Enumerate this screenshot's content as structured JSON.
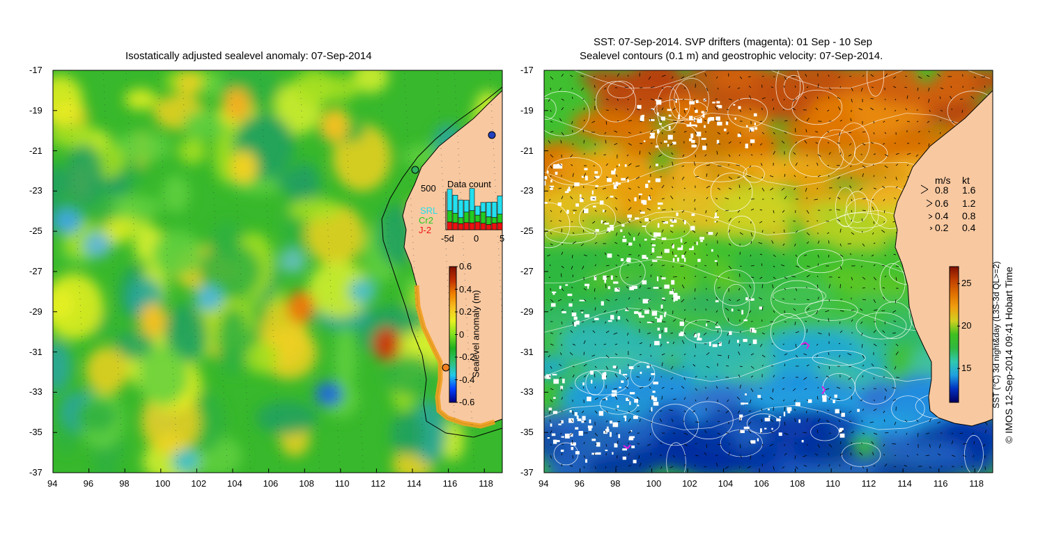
{
  "left_panel": {
    "title": "Isostatically adjusted sealevel anomaly: 07-Sep-2014",
    "lat_ticks": [
      "-17",
      "-19",
      "-21",
      "-23",
      "-25",
      "-27",
      "-29",
      "-31",
      "-33",
      "-35",
      "-37"
    ],
    "lon_ticks": [
      "94",
      "96",
      "98",
      "100",
      "102",
      "104",
      "106",
      "108",
      "110",
      "112",
      "114",
      "116",
      "118"
    ],
    "colorbar": {
      "label": "Sealevel anomaly (m)",
      "ticks": [
        "0.6",
        "0.4",
        "0.2",
        "0",
        "-0.2",
        "-0.4",
        "-0.6"
      ],
      "range": [
        -0.6,
        0.6
      ]
    },
    "data_count": {
      "title": "Data count",
      "max_label": "500",
      "satellites": [
        {
          "name": "SRL",
          "color": "#22e0f0"
        },
        {
          "name": "Cr2",
          "color": "#22cc22"
        },
        {
          "name": "J-2",
          "color": "#ee1111"
        }
      ],
      "x_ticks": [
        "-5d",
        "0",
        "5"
      ]
    }
  },
  "right_panel": {
    "title_line1": "SST: 07-Sep-2014. SVP drifters (magenta): 01 Sep - 10 Sep",
    "title_line2": "Sealevel contours (0.1 m) and geostrophic velocity: 07-Sep-2014.",
    "lat_ticks": [
      "-17",
      "-19",
      "-21",
      "-23",
      "-25",
      "-27",
      "-29",
      "-31",
      "-33",
      "-35",
      "-37"
    ],
    "lon_ticks": [
      "94",
      "96",
      "98",
      "100",
      "102",
      "104",
      "106",
      "108",
      "110",
      "112",
      "114",
      "116",
      "118"
    ],
    "velocity_legend": {
      "header_ms": "m/s",
      "header_kt": "kt",
      "rows": [
        {
          "ms": "0.8",
          "kt": "1.6"
        },
        {
          "ms": "0.6",
          "kt": "1.2"
        },
        {
          "ms": "0.4",
          "kt": "0.8"
        },
        {
          "ms": "0.2",
          "kt": "0.4"
        }
      ]
    },
    "colorbar": {
      "label": "SST (°C) 3d night&day (L3S-3d QL>=2)",
      "ticks": [
        "25",
        "20",
        "15"
      ],
      "range": [
        11,
        27
      ]
    }
  },
  "credit": "© IMOS 12-Sep-2014 09:41 Hobart Time",
  "colors": {
    "land": "#f8c8a0",
    "ssh_colormap": [
      "#000080",
      "#0040ff",
      "#22c8e8",
      "#30c070",
      "#20b020",
      "#80e020",
      "#e8f020",
      "#f8c020",
      "#f08000",
      "#c03000",
      "#801000"
    ],
    "sst_colormap": [
      "#000060",
      "#0030c0",
      "#20a0e0",
      "#30c8b0",
      "#30b840",
      "#40c020",
      "#d0d020",
      "#f0a010",
      "#e07000",
      "#c04000",
      "#801000"
    ]
  }
}
